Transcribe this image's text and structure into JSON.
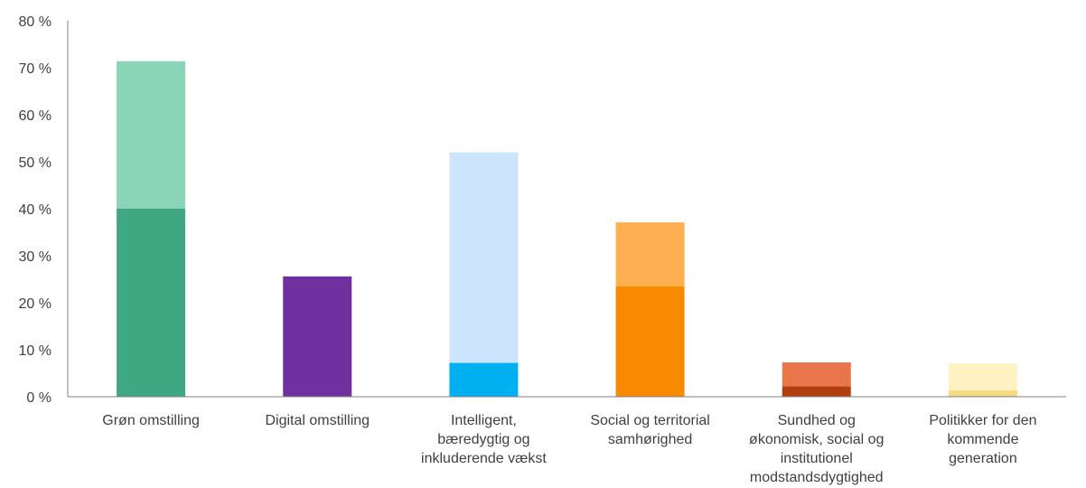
{
  "chart_data": {
    "type": "bar",
    "stacked": true,
    "categories": [
      [
        "Grøn omstilling"
      ],
      [
        "Digital omstilling"
      ],
      [
        "Intelligent,",
        "bæredygtig og",
        "inkluderende vækst"
      ],
      [
        "Social og territorial",
        "samhørighed"
      ],
      [
        "Sundhed og",
        "økonomisk, social og",
        "institutionel",
        "modstandsdygtighed"
      ],
      [
        "Politikker for den",
        "kommende",
        "generation"
      ]
    ],
    "series": [
      {
        "values": [
          40,
          25.6,
          7.2,
          23.5,
          2.2,
          1.4
        ],
        "colors": [
          "#3fa882",
          "#7030a0",
          "#00b0f0",
          "#f78a00",
          "#b0400f",
          "#f5dc80"
        ]
      },
      {
        "values": [
          31.4,
          0,
          44.8,
          13.6,
          5.1,
          5.7
        ],
        "colors": [
          "#8ad4b7",
          "#7030a0",
          "#cce5fc",
          "#feaf52",
          "#e8764a",
          "#fff3c4"
        ]
      }
    ],
    "yticks": [
      "0 %",
      "10 %",
      "20 %",
      "30 %",
      "40 %",
      "50 %",
      "60 %",
      "70 %",
      "80 %"
    ],
    "ylim": [
      0,
      80
    ],
    "grid": false,
    "legend": false,
    "axis_color": "#808080"
  }
}
